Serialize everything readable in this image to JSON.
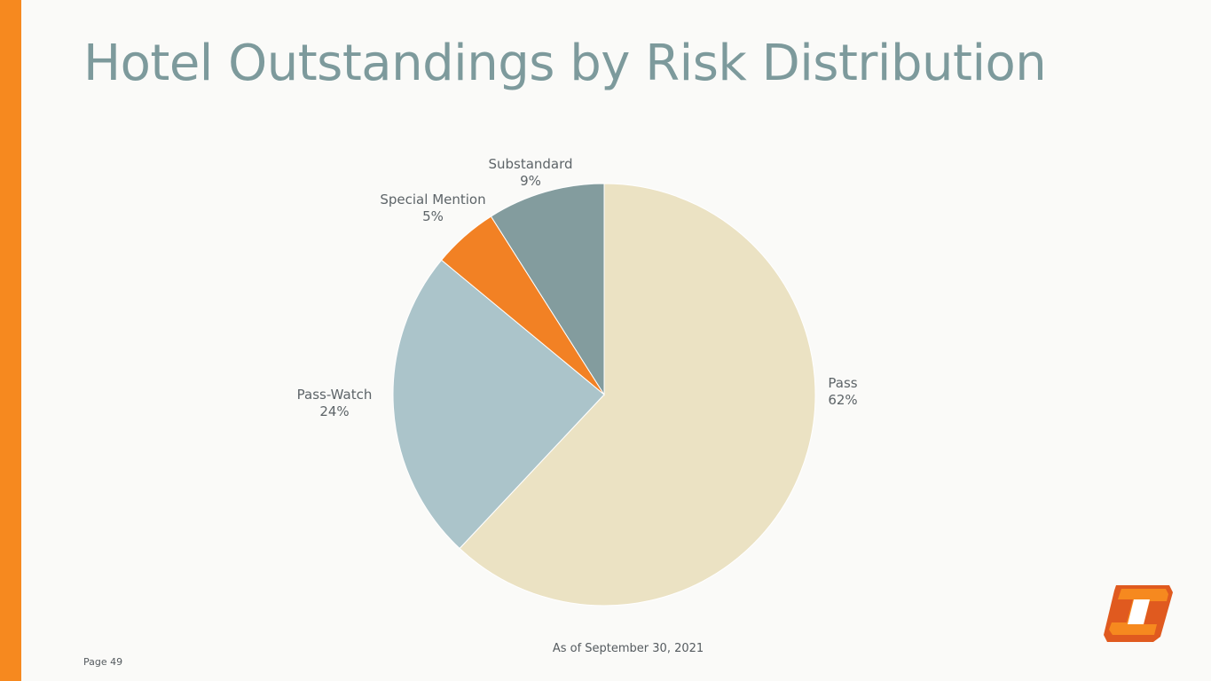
{
  "slide": {
    "title": "Hotel Outstandings by Risk Distribution",
    "footnote": "As of September 30, 2021",
    "page_label": "Page 49",
    "accent_color": "#f6891f",
    "title_color": "#7d9a9c"
  },
  "logo": {
    "icon": "company-logo-icon",
    "colors": [
      "#f6891f",
      "#e05a1f"
    ]
  },
  "chart_data": {
    "type": "pie",
    "start_angle": "12 o'clock, clockwise",
    "slices": [
      {
        "label": "Pass",
        "percent_label": "62%",
        "value": 62,
        "color": "#ebe2c3"
      },
      {
        "label": "Pass-Watch",
        "percent_label": "24%",
        "value": 24,
        "color": "#abc4ca"
      },
      {
        "label": "Special Mention",
        "percent_label": "5%",
        "value": 5,
        "color": "#f28124"
      },
      {
        "label": "Substandard",
        "percent_label": "9%",
        "value": 9,
        "color": "#839c9e"
      }
    ]
  }
}
